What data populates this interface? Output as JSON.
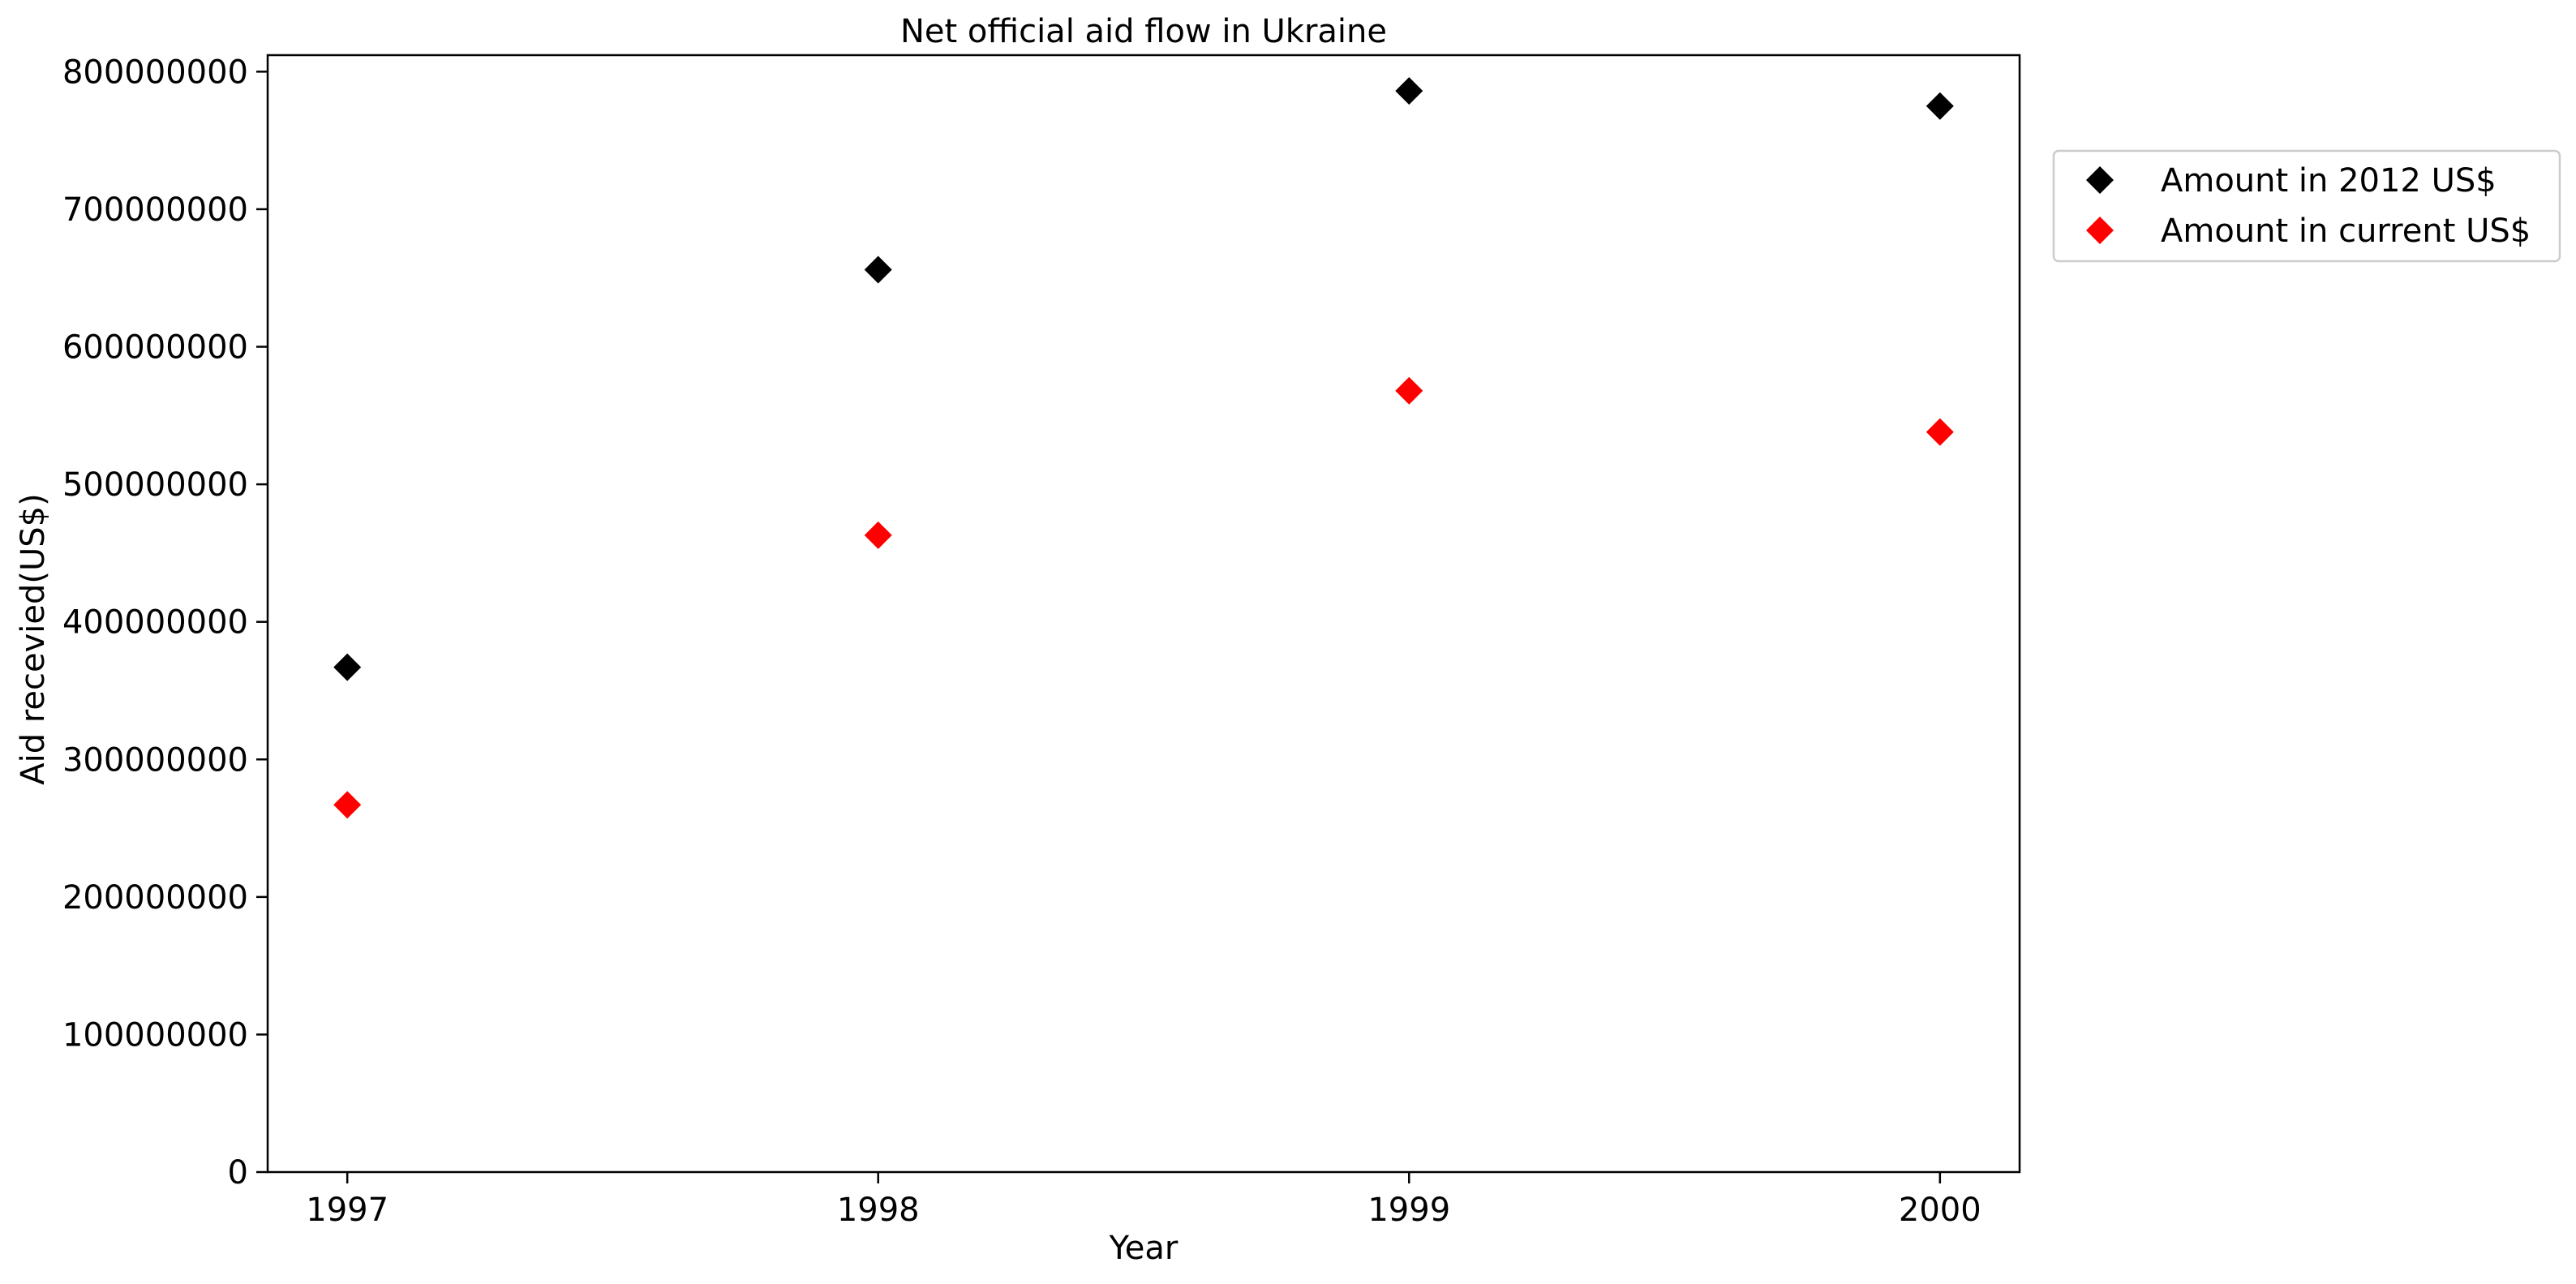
{
  "chart_data": {
    "type": "scatter",
    "title": "Net official aid flow in Ukraine",
    "xlabel": "Year",
    "ylabel": "Aid recevied(US$)",
    "x": [
      1997,
      1998,
      1999,
      2000
    ],
    "x_tick_labels": [
      "1997",
      "1998",
      "1999",
      "2000"
    ],
    "ylim": [
      0,
      812000000
    ],
    "y_ticks": [
      0,
      100000000,
      200000000,
      300000000,
      400000000,
      500000000,
      600000000,
      700000000,
      800000000
    ],
    "y_tick_labels": [
      "0",
      "100000000",
      "200000000",
      "300000000",
      "400000000",
      "500000000",
      "600000000",
      "700000000",
      "800000000"
    ],
    "marker": "diamond",
    "grid": false,
    "legend_position": "outside-right-top",
    "series": [
      {
        "name": "Amount in 2012 US$",
        "color": "#000000",
        "values": [
          367000000,
          656000000,
          786000000,
          775000000
        ]
      },
      {
        "name": "Amount in current US$",
        "color": "#ff0000",
        "values": [
          267000000,
          463000000,
          568000000,
          538000000
        ]
      }
    ]
  }
}
